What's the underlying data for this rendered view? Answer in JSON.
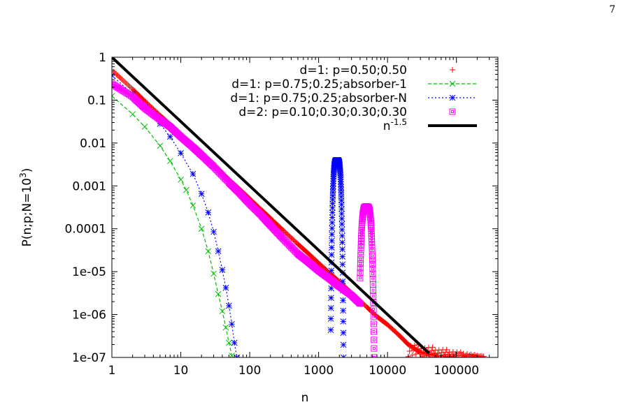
{
  "page": {
    "number": "7"
  },
  "chart_data": {
    "type": "scatter",
    "xlabel": "n",
    "ylabel": {
      "main": "P(n;p;N=10",
      "sup": "3",
      "close": ")"
    },
    "xscale": "log",
    "yscale": "log",
    "xlim": [
      1,
      400000
    ],
    "ylim": [
      1e-07,
      1
    ],
    "xticks": [
      "1",
      "10",
      "100",
      "1000",
      "10000",
      "100000"
    ],
    "yticks": [
      "1",
      "0.1",
      "0.01",
      "0.001",
      "0.0001",
      "1e-05",
      "1e-06",
      "1e-07"
    ],
    "legend_position": "top-right",
    "series": [
      {
        "name": "d=1: p=0.50;0.50",
        "color": "#ff0000",
        "marker": "plus",
        "line": "none",
        "points": [
          [
            1,
            0.5
          ],
          [
            2,
            0.18
          ],
          [
            3,
            0.095
          ],
          [
            5,
            0.044
          ],
          [
            7,
            0.027
          ],
          [
            10,
            0.0158
          ],
          [
            15,
            0.0086
          ],
          [
            20,
            0.0056
          ],
          [
            30,
            0.003
          ],
          [
            50,
            0.0014
          ],
          [
            70,
            0.00086
          ],
          [
            100,
            0.0005
          ],
          [
            150,
            0.00027
          ],
          [
            200,
            0.000175
          ],
          [
            300,
            9.5e-05
          ],
          [
            500,
            4.4e-05
          ],
          [
            700,
            2.7e-05
          ],
          [
            1000,
            1.58e-05
          ],
          [
            1500,
            8.8e-06
          ],
          [
            2000,
            5.8e-06
          ],
          [
            3000,
            3.2e-06
          ],
          [
            5000,
            1.5e-06
          ],
          [
            7000,
            9e-07
          ],
          [
            10000,
            5.8e-07
          ],
          [
            15000,
            3.2e-07
          ],
          [
            20000,
            2e-07
          ],
          [
            30000,
            1.3e-07
          ],
          [
            50000,
            1.1e-07
          ],
          [
            100000,
            1e-07
          ],
          [
            200000,
            1e-07
          ]
        ]
      },
      {
        "name": "d=1: p=0.75;0.25;absorber-1",
        "color": "#00c000",
        "marker": "x",
        "line": "dashed",
        "points": [
          [
            1,
            0.125
          ],
          [
            2,
            0.047
          ],
          [
            3,
            0.024
          ],
          [
            5,
            0.0086
          ],
          [
            7,
            0.0038
          ],
          [
            10,
            0.0014
          ],
          [
            12,
            0.0008
          ],
          [
            15,
            0.00035
          ],
          [
            20,
            0.0001
          ],
          [
            25,
            3e-05
          ],
          [
            30,
            9e-06
          ],
          [
            35,
            3e-06
          ],
          [
            40,
            1.2e-06
          ],
          [
            45,
            5e-07
          ],
          [
            50,
            2.2e-07
          ],
          [
            55,
            1.1e-07
          ]
        ]
      },
      {
        "name": "d=1: p=0.75;0.25;absorber-N",
        "color": "#0000ff",
        "marker": "star",
        "line": "dotted",
        "points": [
          [
            1,
            0.375
          ],
          [
            2,
            0.14
          ],
          [
            3,
            0.07
          ],
          [
            5,
            0.028
          ],
          [
            7,
            0.014
          ],
          [
            10,
            0.0058
          ],
          [
            15,
            0.0019
          ],
          [
            20,
            0.00065
          ],
          [
            25,
            0.00024
          ],
          [
            30,
            8.5e-05
          ],
          [
            35,
            3e-05
          ],
          [
            40,
            1.1e-05
          ],
          [
            45,
            4.2e-06
          ],
          [
            50,
            1.6e-06
          ],
          [
            55,
            6e-07
          ],
          [
            60,
            2.2e-07
          ],
          [
            65,
            1e-07
          ]
        ]
      },
      {
        "name": "d=2: p=0.10;0.30;0.30;0.30",
        "color": "#ff00ff",
        "marker": "square",
        "line": "none",
        "points": [
          [
            1,
            0.24
          ],
          [
            2,
            0.12
          ],
          [
            3,
            0.065
          ],
          [
            5,
            0.035
          ],
          [
            7,
            0.024
          ],
          [
            10,
            0.014
          ],
          [
            15,
            0.008
          ],
          [
            20,
            0.0052
          ],
          [
            30,
            0.0028
          ],
          [
            50,
            0.0012
          ],
          [
            70,
            0.0007
          ],
          [
            100,
            0.00038
          ],
          [
            150,
            0.0002
          ],
          [
            200,
            0.00012
          ],
          [
            300,
            6e-05
          ],
          [
            500,
            2.6e-05
          ],
          [
            700,
            1.7e-05
          ],
          [
            1000,
            1.05e-05
          ],
          [
            1500,
            6.5e-06
          ],
          [
            2000,
            4.5e-06
          ],
          [
            3000,
            2.8e-06
          ],
          [
            4000,
            1.8e-06
          ]
        ]
      },
      {
        "name": "n",
        "name_sup": "-1.5",
        "color": "#000000",
        "marker": "none",
        "line": "solid",
        "points": [
          [
            1,
            1
          ],
          [
            40000,
            1.25e-07
          ]
        ]
      }
    ],
    "peaks": [
      {
        "series": "d=1: p=0.75;0.25;absorber-N",
        "x_range": [
          1500,
          2300
        ],
        "center": 1850,
        "peak": 0.004
      },
      {
        "series": "d=2: p=0.10;0.30;0.30;0.30",
        "x_range": [
          4000,
          6400
        ],
        "center": 4950,
        "peak": 0.00033
      }
    ]
  }
}
